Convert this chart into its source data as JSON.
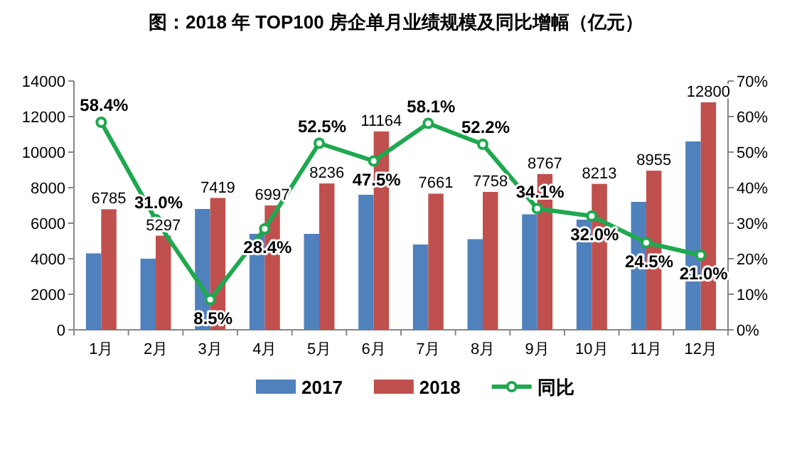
{
  "chart_data": {
    "type": "bar",
    "title": "图：2018 年 TOP100 房企单月业绩规模及同比增幅（亿元）",
    "categories": [
      "1月",
      "2月",
      "3月",
      "4月",
      "5月",
      "6月",
      "7月",
      "8月",
      "9月",
      "10月",
      "11月",
      "12月"
    ],
    "series": [
      {
        "name": "2017",
        "color": "#4f81bd",
        "values": [
          4300,
          4000,
          6800,
          5400,
          5400,
          7600,
          4800,
          5100,
          6500,
          6200,
          7200,
          10600
        ]
      },
      {
        "name": "2018",
        "color": "#c0504d",
        "values": [
          6785,
          5297,
          7419,
          6997,
          8236,
          11164,
          7661,
          7758,
          8767,
          8213,
          8955,
          12800
        ],
        "value_labels": [
          "6785",
          "5297",
          "7419",
          "6997",
          "8236",
          "11164",
          "7661",
          "7758",
          "8767",
          "8213",
          "8955",
          "12800"
        ]
      },
      {
        "name": "同比",
        "type": "line",
        "axis": "y2",
        "color": "#1fa84f",
        "marker": "circle",
        "values": [
          58.4,
          31.0,
          8.5,
          28.4,
          52.5,
          47.5,
          58.1,
          52.2,
          34.1,
          32.0,
          24.5,
          21.0
        ],
        "value_labels": [
          "58.4%",
          "31.0%",
          "8.5%",
          "28.4%",
          "52.5%",
          "47.5%",
          "58.1%",
          "52.2%",
          "34.1%",
          "32.0%",
          "24.5%",
          "21.0%"
        ]
      }
    ],
    "ylim": [
      0,
      14000
    ],
    "yticks": [
      0,
      2000,
      4000,
      6000,
      8000,
      10000,
      12000,
      14000
    ],
    "y2lim": [
      0,
      70
    ],
    "y2ticks": [
      {
        "value": 0,
        "label": "0%"
      },
      {
        "value": 10,
        "label": "10%"
      },
      {
        "value": 20,
        "label": "20%"
      },
      {
        "value": 30,
        "label": "30%"
      },
      {
        "value": 40,
        "label": "40%"
      },
      {
        "value": 50,
        "label": "50%"
      },
      {
        "value": 60,
        "label": "60%"
      },
      {
        "value": 70,
        "label": "70%"
      }
    ],
    "legend": "bottom",
    "grid": false
  }
}
